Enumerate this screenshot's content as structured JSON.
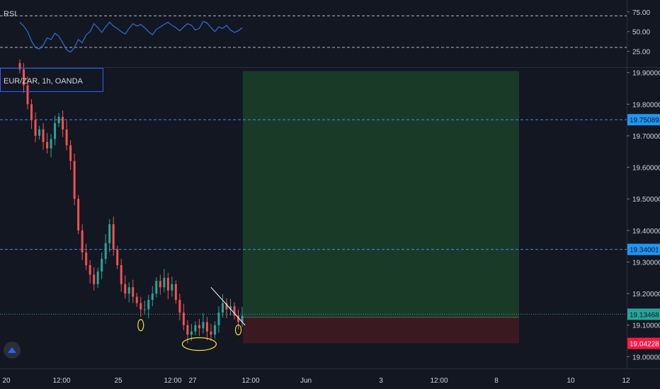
{
  "symbol_label": "EUR/ZAR, 1h, OANDA",
  "rsi_label": "RSI",
  "colors": {
    "background": "#131722",
    "up": "#26a69a",
    "down": "#ef5350",
    "rsi_line": "#2f6fd6",
    "level_line": "#2196f3",
    "profit_zone": "#1a3a28",
    "loss_zone": "#3a1a20",
    "ellipse": "#f5e12d",
    "stop_tag": "#ff1744",
    "target_tag": "#2196f3",
    "current_tag": "#26a69a"
  },
  "rsi_axis": {
    "ticks": [
      "75.00",
      "50.00",
      "25.00"
    ],
    "levels": [
      70,
      30
    ]
  },
  "price_axis": {
    "ticks": [
      "19.90000",
      "19.80000",
      "19.70000",
      "19.60000",
      "19.50000",
      "19.40000",
      "19.30000",
      "19.20000",
      "19.10000",
      "19.00000"
    ],
    "tagged": [
      {
        "text": "19.75089",
        "value": 19.75089,
        "kind": "target"
      },
      {
        "text": "19.34001",
        "value": 19.34001,
        "kind": "target"
      },
      {
        "text": "19.13468",
        "value": 19.13468,
        "kind": "current"
      },
      {
        "text": "19.04228",
        "value": 19.04228,
        "kind": "stop"
      }
    ]
  },
  "time_axis": {
    "ticks": [
      "20",
      "12:00",
      "25",
      "12:00",
      "27",
      "12:00",
      "Jun",
      "3",
      "12:00",
      "8",
      "10",
      "12"
    ]
  },
  "position": {
    "entry": 19.125,
    "target": 19.905,
    "stop": 19.04228
  },
  "chart_data": {
    "type": "candlestick",
    "title": "EUR/ZAR, 1h, OANDA",
    "ylim": [
      18.965,
      19.915
    ],
    "y_tick_labels": [
      "19.90000",
      "19.80000",
      "19.70000",
      "19.60000",
      "19.50000",
      "19.40000",
      "19.30000",
      "19.20000",
      "19.10000",
      "19.00000"
    ],
    "price_path": [
      19.91,
      19.86,
      19.8,
      19.75,
      19.7,
      19.72,
      19.68,
      19.66,
      19.69,
      19.74,
      19.76,
      19.72,
      19.67,
      19.62,
      19.5,
      19.4,
      19.33,
      19.29,
      19.26,
      19.23,
      19.27,
      19.31,
      19.36,
      19.42,
      19.34,
      19.29,
      19.23,
      19.2,
      19.22,
      19.19,
      19.17,
      19.15,
      19.15,
      19.18,
      19.2,
      19.24,
      19.22,
      19.25,
      19.21,
      19.23,
      19.18,
      19.14,
      19.1,
      19.07,
      19.08,
      19.1,
      19.09,
      19.11,
      19.08,
      19.07,
      19.1,
      19.14,
      19.17,
      19.15,
      19.16,
      19.13,
      19.11,
      19.13
    ],
    "rsi": [
      62,
      57,
      50,
      38,
      30,
      28,
      33,
      42,
      40,
      48,
      44,
      36,
      27,
      24,
      30,
      40,
      36,
      46,
      50,
      60,
      55,
      49,
      56,
      62,
      57,
      54,
      50,
      47,
      54,
      60,
      57,
      59,
      55,
      50,
      46,
      53,
      56,
      59,
      62,
      58,
      55,
      51,
      56,
      60,
      58,
      52,
      54,
      63,
      61,
      55,
      50,
      56,
      54,
      58,
      52,
      49,
      51,
      55
    ],
    "rsi_ylim": [
      5,
      90
    ],
    "annotations": [
      {
        "kind": "ellipse",
        "near": "Day 25 low"
      },
      {
        "kind": "ellipse",
        "near": "Day 27 low"
      },
      {
        "kind": "ellipse",
        "near": "last candle"
      },
      {
        "kind": "trendline",
        "direction": "down"
      }
    ]
  }
}
